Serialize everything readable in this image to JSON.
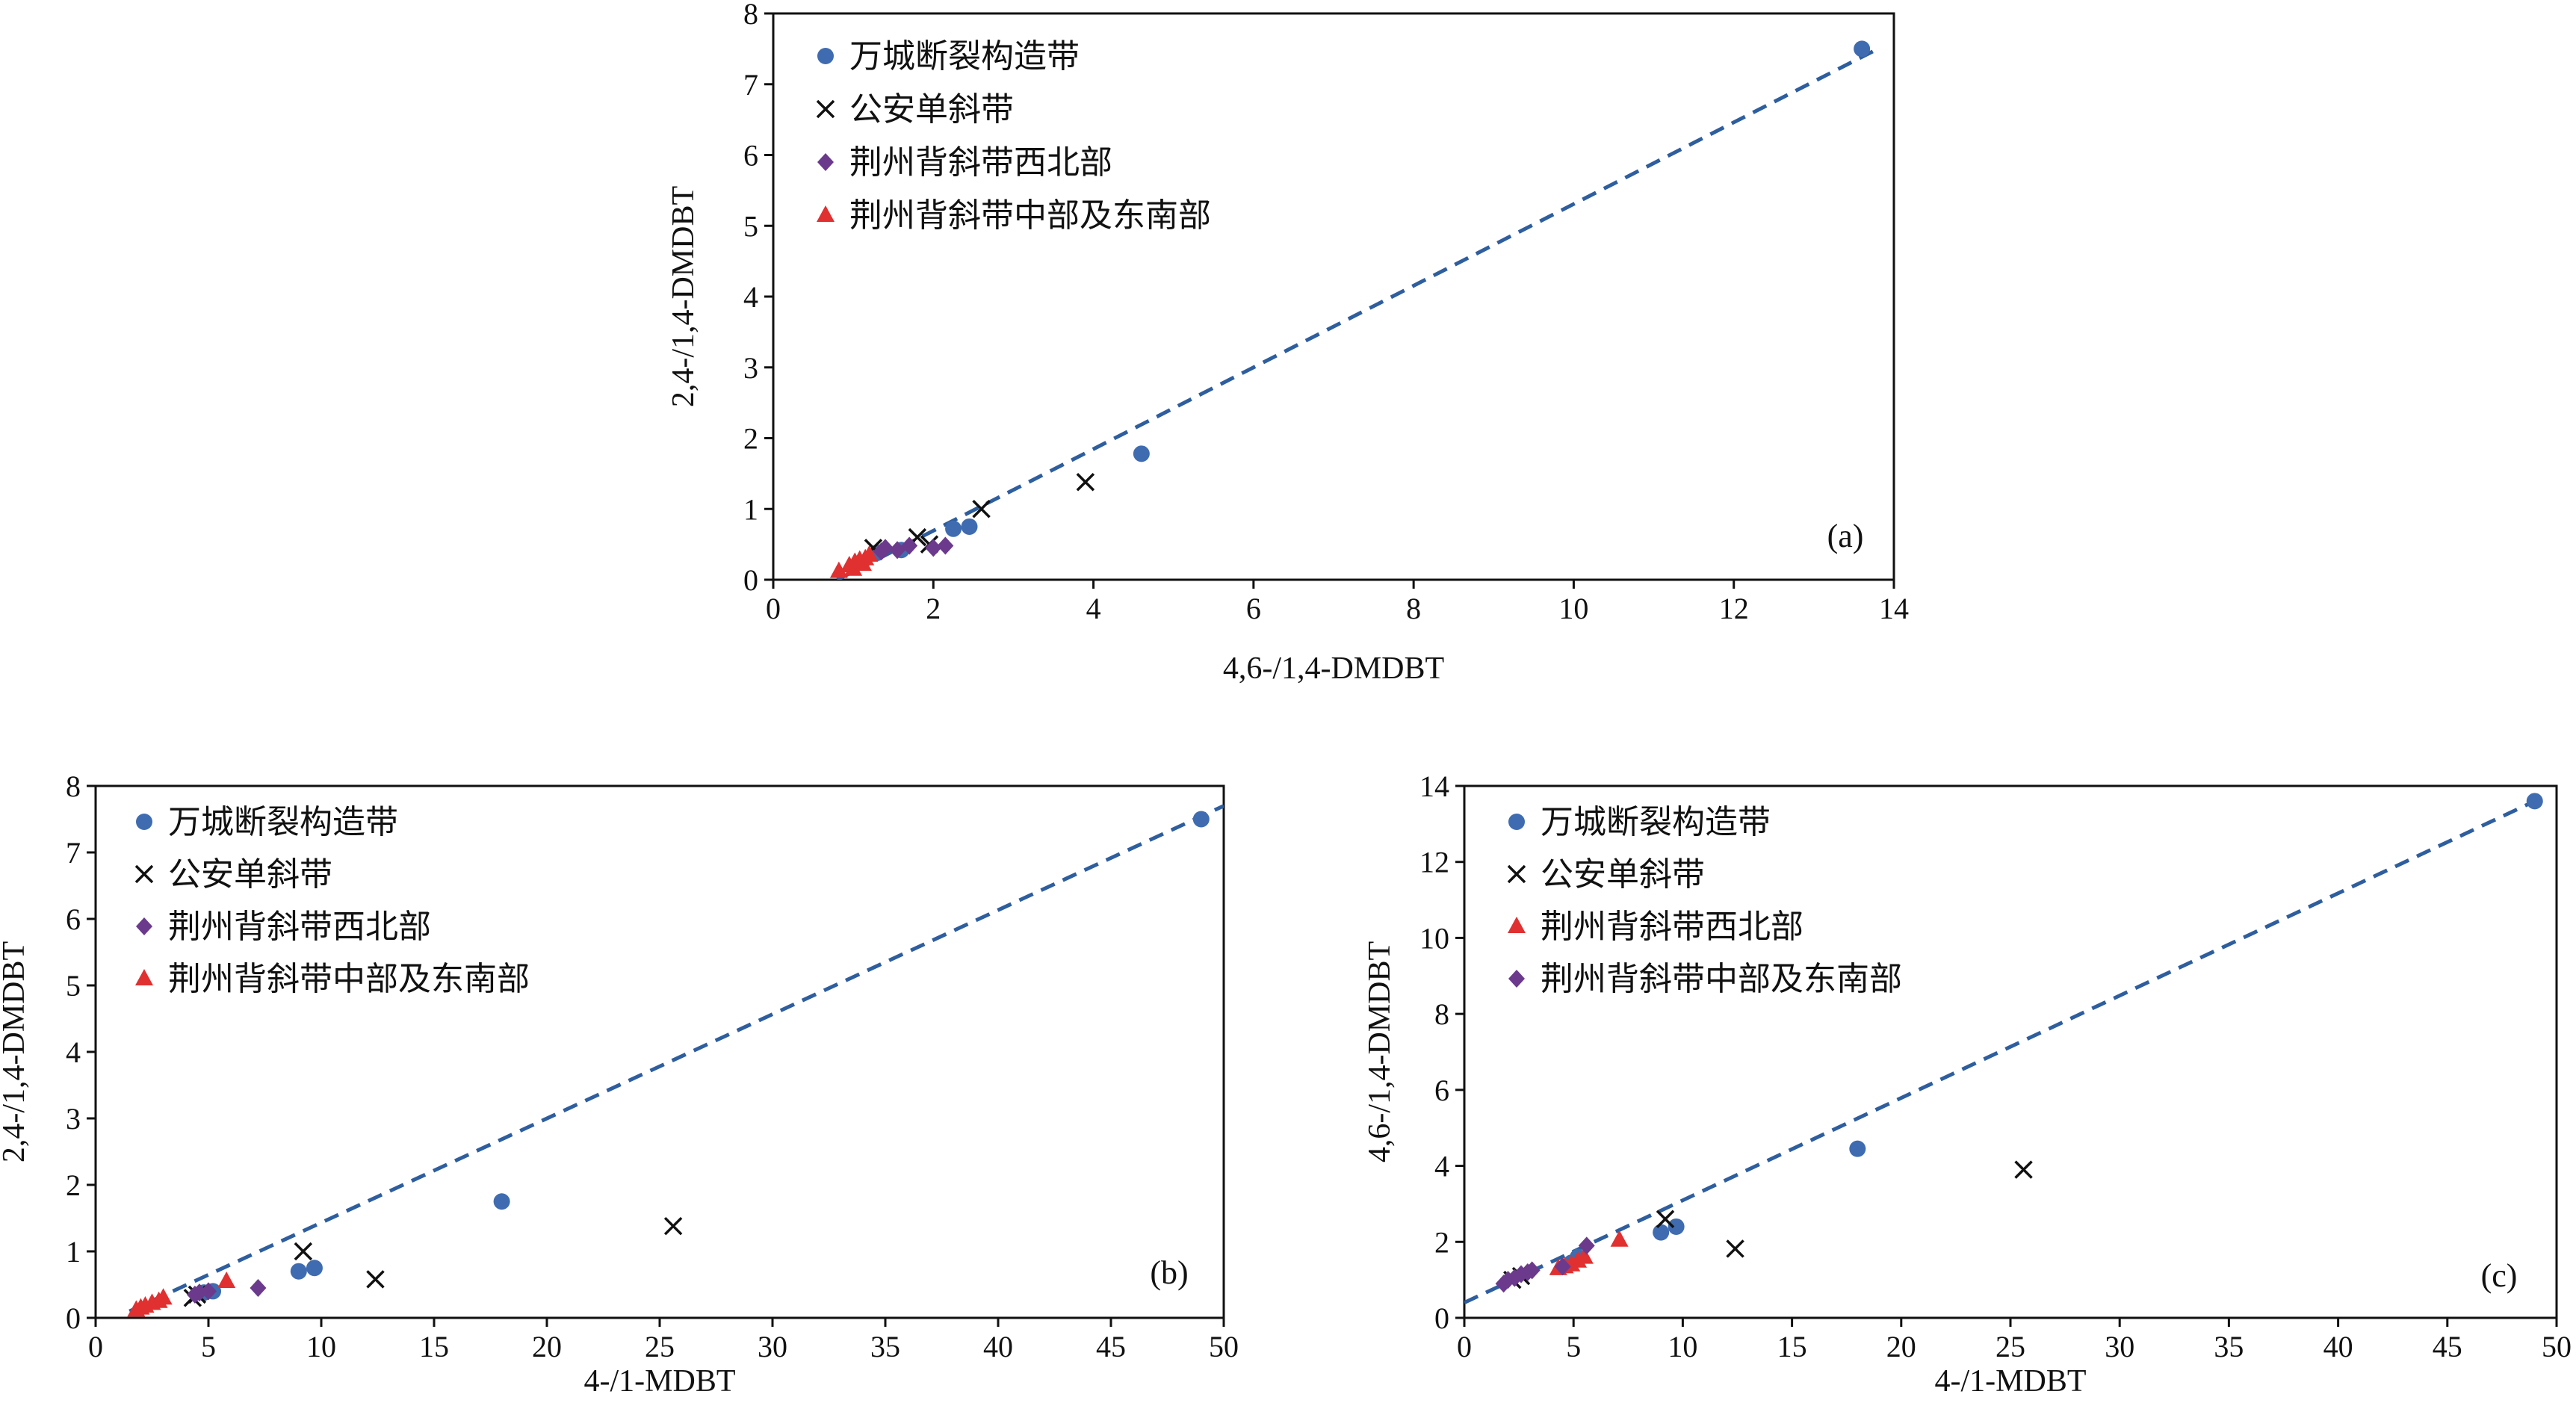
{
  "chart_data": [
    {
      "id": "a",
      "type": "scatter",
      "panel_label": "(a)",
      "xlabel": "4,6-/1,4-DMDBT",
      "ylabel": "2,4-/1,4-DMDBT",
      "xlim": [
        0,
        14
      ],
      "ylim": [
        0,
        8
      ],
      "xticks": [
        0,
        2,
        4,
        6,
        8,
        10,
        12,
        14
      ],
      "yticks": [
        0,
        1,
        2,
        3,
        4,
        5,
        6,
        7,
        8
      ],
      "grid": false,
      "legend_position": "top-left",
      "trendline": {
        "style": "dashed",
        "color": "#2E5E9E",
        "from": [
          0.8,
          0.0
        ],
        "to": [
          13.8,
          7.5
        ]
      },
      "series": [
        {
          "name": "万城断裂构造带",
          "marker": "circle",
          "color": "#3F6CB0",
          "points": [
            [
              13.6,
              7.5
            ],
            [
              4.6,
              1.78
            ],
            [
              2.45,
              0.75
            ],
            [
              2.25,
              0.72
            ],
            [
              1.6,
              0.42
            ],
            [
              1.3,
              0.38
            ]
          ]
        },
        {
          "name": "公安单斜带",
          "marker": "x",
          "color": "#111111",
          "points": [
            [
              2.6,
              1.0
            ],
            [
              3.9,
              1.38
            ],
            [
              1.8,
              0.6
            ],
            [
              1.25,
              0.45
            ],
            [
              1.95,
              0.5
            ]
          ]
        },
        {
          "name": "荆州背斜带西北部",
          "marker": "diamond",
          "color": "#6B3A8C",
          "points": [
            [
              1.4,
              0.45
            ],
            [
              1.55,
              0.42
            ],
            [
              1.7,
              0.48
            ],
            [
              2.0,
              0.45
            ],
            [
              2.15,
              0.48
            ],
            [
              1.35,
              0.4
            ]
          ]
        },
        {
          "name": "荆州背斜带中部及东南部",
          "marker": "triangle",
          "color": "#E03030",
          "points": [
            [
              0.82,
              0.12
            ],
            [
              0.95,
              0.2
            ],
            [
              1.02,
              0.25
            ],
            [
              1.08,
              0.28
            ],
            [
              1.15,
              0.3
            ],
            [
              1.2,
              0.35
            ],
            [
              1.0,
              0.15
            ],
            [
              1.12,
              0.22
            ]
          ]
        }
      ]
    },
    {
      "id": "b",
      "type": "scatter",
      "panel_label": "(b)",
      "xlabel": "4-/1-MDBT",
      "ylabel": "2,4-/1,4-DMDBT",
      "xlim": [
        0,
        50
      ],
      "ylim": [
        0,
        8
      ],
      "xticks": [
        0,
        5,
        10,
        15,
        20,
        25,
        30,
        35,
        40,
        45,
        50
      ],
      "yticks": [
        0,
        1,
        2,
        3,
        4,
        5,
        6,
        7,
        8
      ],
      "grid": false,
      "legend_position": "top-left",
      "trendline": {
        "style": "dashed",
        "color": "#2E5E9E",
        "from": [
          1.5,
          0.1
        ],
        "to": [
          50,
          7.7
        ]
      },
      "series": [
        {
          "name": "万城断裂构造带",
          "marker": "circle",
          "color": "#3F6CB0",
          "points": [
            [
              49,
              7.5
            ],
            [
              18,
              1.75
            ],
            [
              9.7,
              0.75
            ],
            [
              9.0,
              0.7
            ],
            [
              5.2,
              0.4
            ],
            [
              4.8,
              0.38
            ]
          ]
        },
        {
          "name": "公安单斜带",
          "marker": "x",
          "color": "#111111",
          "points": [
            [
              9.2,
              1.0
            ],
            [
              25.6,
              1.38
            ],
            [
              12.4,
              0.58
            ],
            [
              4.5,
              0.35
            ],
            [
              4.3,
              0.3
            ]
          ]
        },
        {
          "name": "荆州背斜带西北部",
          "marker": "diamond",
          "color": "#6B3A8C",
          "points": [
            [
              4.6,
              0.38
            ],
            [
              5.0,
              0.4
            ],
            [
              7.2,
              0.45
            ],
            [
              4.4,
              0.35
            ]
          ]
        },
        {
          "name": "荆州背斜带中部及东南部",
          "marker": "triangle",
          "color": "#E03030",
          "points": [
            [
              1.8,
              0.12
            ],
            [
              2.2,
              0.18
            ],
            [
              2.5,
              0.22
            ],
            [
              2.8,
              0.25
            ],
            [
              3.0,
              0.3
            ],
            [
              5.8,
              0.55
            ],
            [
              2.0,
              0.15
            ]
          ]
        }
      ]
    },
    {
      "id": "c",
      "type": "scatter",
      "panel_label": "(c)",
      "xlabel": "4-/1-MDBT",
      "ylabel": "4,6-/1,4-DMDBT",
      "xlim": [
        0,
        50
      ],
      "ylim": [
        0,
        14
      ],
      "xticks": [
        0,
        5,
        10,
        15,
        20,
        25,
        30,
        35,
        40,
        45,
        50
      ],
      "yticks": [
        0,
        2,
        4,
        6,
        8,
        10,
        12,
        14
      ],
      "grid": false,
      "legend_position": "top-left",
      "trendline": {
        "style": "dashed",
        "color": "#2E5E9E",
        "from": [
          0,
          0.4
        ],
        "to": [
          49,
          13.6
        ]
      },
      "series": [
        {
          "name": "万城断裂构造带",
          "marker": "circle",
          "color": "#3F6CB0",
          "points": [
            [
              49,
              13.6
            ],
            [
              18,
              4.45
            ],
            [
              9.7,
              2.4
            ],
            [
              9.0,
              2.25
            ],
            [
              5.2,
              1.6
            ],
            [
              4.9,
              1.45
            ]
          ]
        },
        {
          "name": "公安单斜带",
          "marker": "x",
          "color": "#111111",
          "points": [
            [
              9.2,
              2.6
            ],
            [
              25.6,
              3.9
            ],
            [
              12.4,
              1.82
            ],
            [
              2.6,
              1.1
            ],
            [
              2.2,
              1.0
            ]
          ]
        },
        {
          "name": "荆州背斜带西北部",
          "marker": "triangle",
          "color": "#E03030",
          "points": [
            [
              4.3,
              1.3
            ],
            [
              4.6,
              1.35
            ],
            [
              4.9,
              1.4
            ],
            [
              5.2,
              1.5
            ],
            [
              5.5,
              1.6
            ],
            [
              7.1,
              2.05
            ]
          ]
        },
        {
          "name": "荆州背斜带中部及东南部",
          "marker": "diamond",
          "color": "#6B3A8C",
          "points": [
            [
              1.8,
              0.9
            ],
            [
              2.0,
              1.0
            ],
            [
              2.3,
              1.05
            ],
            [
              2.6,
              1.15
            ],
            [
              2.9,
              1.2
            ],
            [
              3.1,
              1.25
            ],
            [
              5.6,
              1.9
            ],
            [
              4.5,
              1.35
            ]
          ]
        }
      ]
    }
  ]
}
